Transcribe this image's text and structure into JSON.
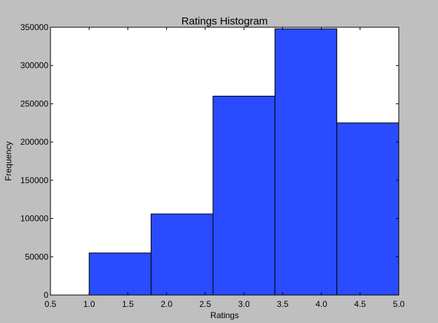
{
  "chart_data": {
    "type": "bar",
    "title": "Ratings Histogram",
    "xlabel": "Ratings",
    "ylabel": "Frequency",
    "xlim": [
      0.5,
      5.0
    ],
    "ylim": [
      0,
      350000
    ],
    "grid": false,
    "bins": [
      {
        "x0": 1.0,
        "x1": 1.8,
        "value": 55000
      },
      {
        "x0": 1.8,
        "x1": 2.6,
        "value": 106000
      },
      {
        "x0": 2.6,
        "x1": 3.4,
        "value": 260000
      },
      {
        "x0": 3.4,
        "x1": 4.2,
        "value": 348000
      },
      {
        "x0": 4.2,
        "x1": 5.0,
        "value": 225000
      }
    ],
    "xticks": [
      {
        "value": 0.5,
        "label": "0.5"
      },
      {
        "value": 1.0,
        "label": "1.0"
      },
      {
        "value": 1.5,
        "label": "1.5"
      },
      {
        "value": 2.0,
        "label": "2.0"
      },
      {
        "value": 2.5,
        "label": "2.5"
      },
      {
        "value": 3.0,
        "label": "3.0"
      },
      {
        "value": 3.5,
        "label": "3.5"
      },
      {
        "value": 4.0,
        "label": "4.0"
      },
      {
        "value": 4.5,
        "label": "4.5"
      },
      {
        "value": 5.0,
        "label": "5.0"
      }
    ],
    "yticks": [
      {
        "value": 0,
        "label": "0"
      },
      {
        "value": 50000,
        "label": "50000"
      },
      {
        "value": 100000,
        "label": "100000"
      },
      {
        "value": 150000,
        "label": "150000"
      },
      {
        "value": 200000,
        "label": "200000"
      },
      {
        "value": 250000,
        "label": "250000"
      },
      {
        "value": 300000,
        "label": "300000"
      },
      {
        "value": 350000,
        "label": "350000"
      }
    ],
    "colors": {
      "bar": "#2a4bff",
      "figure_background": "#bfbfbf",
      "axes_background": "#ffffff"
    }
  }
}
